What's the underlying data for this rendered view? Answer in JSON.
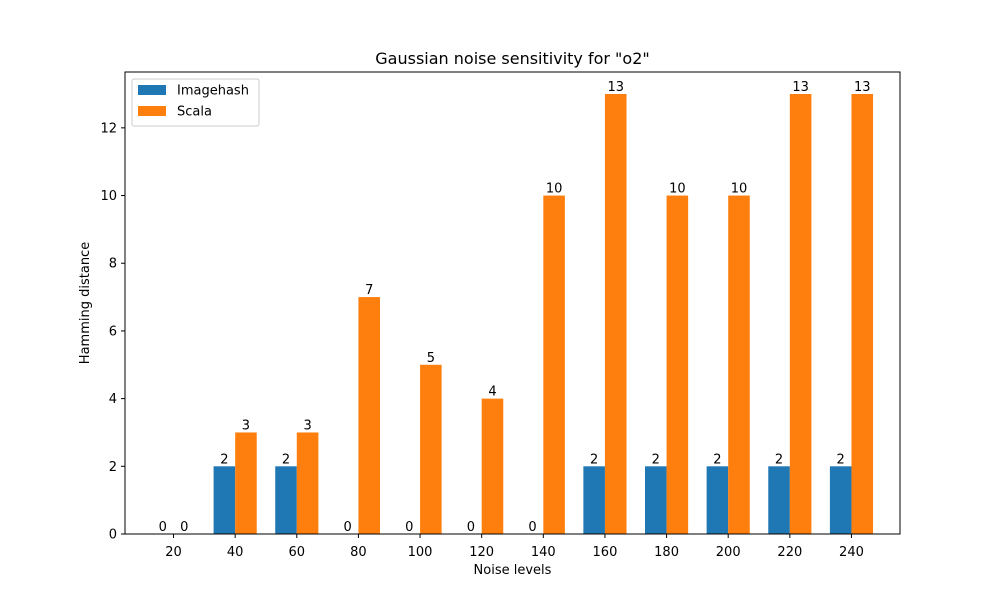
{
  "chart_data": {
    "type": "bar",
    "title": "Gaussian noise sensitivity for \"o2\"",
    "xlabel": "Noise levels",
    "ylabel": "Hamming distance",
    "categories": [
      "20",
      "40",
      "60",
      "80",
      "100",
      "120",
      "140",
      "160",
      "180",
      "200",
      "220",
      "240"
    ],
    "series": [
      {
        "name": "Imagehash",
        "color": "#1f77b4",
        "values": [
          0,
          2,
          2,
          0,
          0,
          0,
          0,
          2,
          2,
          2,
          2,
          2
        ]
      },
      {
        "name": "Scala",
        "color": "#ff7f0e",
        "values": [
          0,
          3,
          3,
          7,
          5,
          4,
          10,
          13,
          10,
          10,
          13,
          13
        ]
      }
    ],
    "ylim": [
      0,
      13.65
    ],
    "yticks": [
      0,
      2,
      4,
      6,
      8,
      10,
      12
    ],
    "grid": false,
    "legend_position": "top-left",
    "data_labels": true
  }
}
